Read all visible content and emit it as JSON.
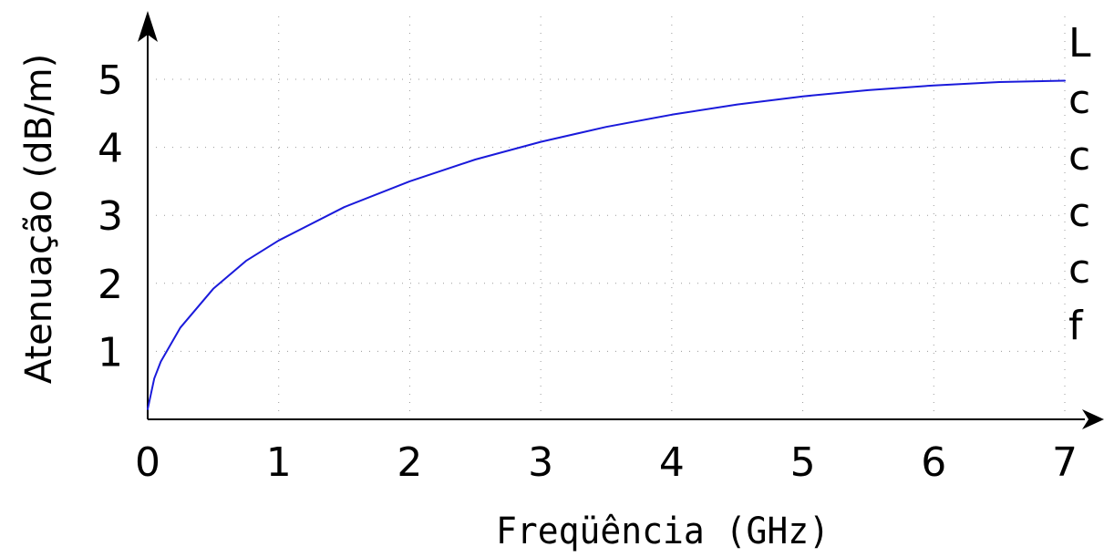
{
  "chart_data": {
    "type": "line",
    "title": "",
    "xlabel": "Freqüência (GHz)",
    "ylabel": "Atenuação (dB/m)",
    "xlim": [
      0,
      7
    ],
    "ylim": [
      0,
      5
    ],
    "x_ticks": [
      "0",
      "1",
      "2",
      "3",
      "4",
      "5",
      "6",
      "7"
    ],
    "y_ticks": [
      "1",
      "2",
      "3",
      "4",
      "5"
    ],
    "grid": true,
    "series": [
      {
        "color": "#1a1adb",
        "x": [
          0,
          0.05,
          0.1,
          0.25,
          0.5,
          0.75,
          1,
          1.5,
          2,
          2.5,
          3,
          3.5,
          4,
          4.5,
          5,
          5.5,
          6,
          6.5,
          7
        ],
        "y": [
          0.15,
          0.6,
          0.85,
          1.35,
          1.92,
          2.33,
          2.63,
          3.12,
          3.5,
          3.82,
          4.08,
          4.3,
          4.48,
          4.63,
          4.75,
          4.84,
          4.91,
          4.96,
          4.98
        ]
      }
    ],
    "side_text": [
      "L",
      "c",
      "c",
      "c",
      "c",
      "f"
    ]
  }
}
